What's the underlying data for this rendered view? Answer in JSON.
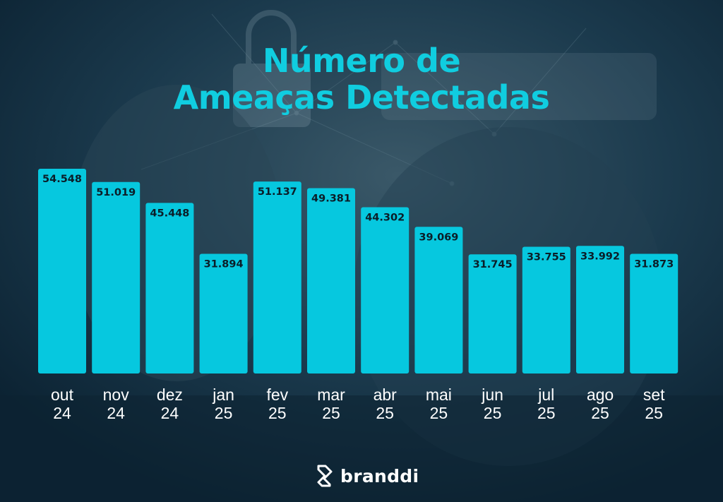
{
  "colors": {
    "background": "#0f2b3e",
    "accent": "#10cde0",
    "bar": "#06c8df",
    "value_label": "#0b1d28",
    "axis_label": "#ffffff"
  },
  "title": {
    "line1": "Número de",
    "line2": "Ameaças Detectadas"
  },
  "brand": {
    "name": "branddi",
    "icon": "branddi-logo-icon"
  },
  "chart_data": {
    "type": "bar",
    "title": "Número de Ameaças Detectadas",
    "categories": [
      [
        "out",
        "24"
      ],
      [
        "nov",
        "24"
      ],
      [
        "dez",
        "24"
      ],
      [
        "jan",
        "25"
      ],
      [
        "fev",
        "25"
      ],
      [
        "mar",
        "25"
      ],
      [
        "abr",
        "25"
      ],
      [
        "mai",
        "25"
      ],
      [
        "jun",
        "25"
      ],
      [
        "jul",
        "25"
      ],
      [
        "ago",
        "25"
      ],
      [
        "set",
        "25"
      ]
    ],
    "values": [
      54548,
      51019,
      45448,
      31894,
      51137,
      49381,
      44302,
      39069,
      31745,
      33755,
      33992,
      31873
    ],
    "value_labels": [
      "54.548",
      "51.019",
      "45.448",
      "31.894",
      "51.137",
      "49.381",
      "44.302",
      "39.069",
      "31.745",
      "33.755",
      "33.992",
      "31.873"
    ],
    "xlabel": "",
    "ylabel": "",
    "grid": false,
    "legend": "none"
  }
}
